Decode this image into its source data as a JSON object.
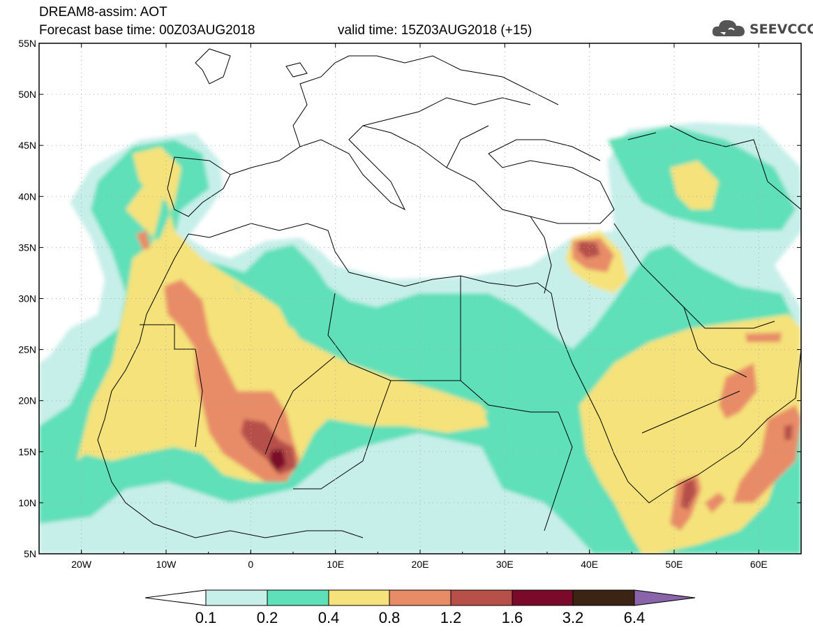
{
  "header": {
    "title_line1": "DREAM8-assim: AOT",
    "title_base": "Forecast base time: 00Z03AUG2018",
    "title_valid": "valid time: 15Z03AUG2018 (+15)"
  },
  "logo": {
    "text": "SEEVCCC",
    "icon": "cloud-icon"
  },
  "map": {
    "lon_range": [
      -25,
      65
    ],
    "lat_range": [
      5,
      55
    ],
    "lat_ticks": [
      "5N",
      "10N",
      "15N",
      "20N",
      "25N",
      "30N",
      "35N",
      "40N",
      "45N",
      "50N",
      "55N"
    ],
    "lon_ticks": [
      "20W",
      "10W",
      "0",
      "10E",
      "20E",
      "30E",
      "40E",
      "50E",
      "60E"
    ]
  },
  "colorbar": {
    "labels": [
      "0.1",
      "0.2",
      "0.4",
      "0.8",
      "1.2",
      "1.6",
      "3.2",
      "6.4"
    ],
    "colors": {
      "below": "#ffffff",
      "c1": "#c7efea",
      "c2": "#5ee0b8",
      "c3": "#f5e27a",
      "c4": "#e88c68",
      "c5": "#b65048",
      "c6": "#7b0a2a",
      "c7": "#3b2414",
      "above": "#8a64a8"
    }
  }
}
